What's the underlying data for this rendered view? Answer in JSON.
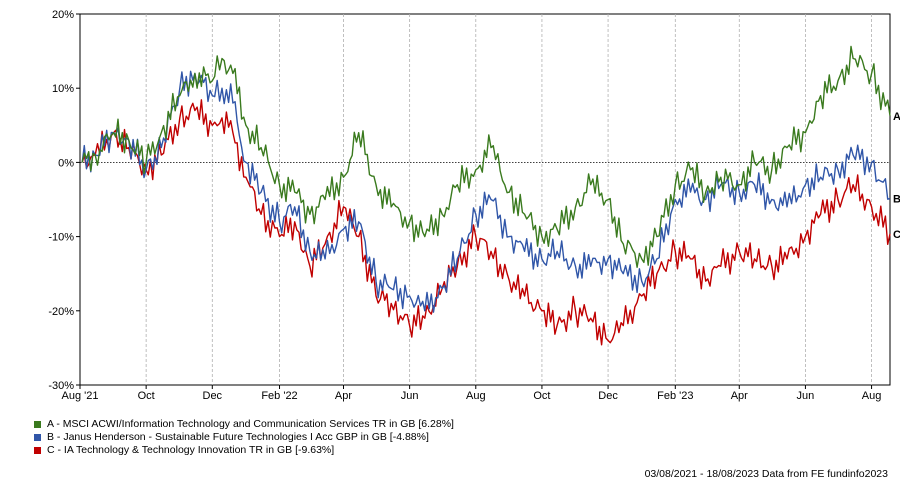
{
  "chart_data": {
    "type": "line",
    "title": "",
    "xlabel": "",
    "ylabel": "",
    "ylim": [
      -30,
      20
    ],
    "y_ticks": [
      "20%",
      "10%",
      "0%",
      "-10%",
      "-20%",
      "-30%"
    ],
    "y_tick_values": [
      20,
      10,
      0,
      -10,
      -20,
      -30
    ],
    "x_tick_labels": [
      "Aug '21",
      "Oct",
      "Dec",
      "Feb '22",
      "Apr",
      "Jun",
      "Aug",
      "Oct",
      "Dec",
      "Feb '23",
      "Apr",
      "Jun",
      "Aug"
    ],
    "x_tick_dates": [
      "2021-08-01",
      "2021-10-01",
      "2021-12-01",
      "2022-02-01",
      "2022-04-01",
      "2022-06-01",
      "2022-08-01",
      "2022-10-01",
      "2022-12-01",
      "2023-02-01",
      "2023-04-01",
      "2023-06-01",
      "2023-08-01"
    ],
    "x_range": [
      "2021-08-01",
      "2023-08-18"
    ],
    "grid": "vertical dashed",
    "zero_line": "dotted",
    "legend_position": "bottom-left",
    "series": [
      {
        "label": "A",
        "name": "A - MSCI ACWI/Information Technology and Communication Services TR in GB [6.28%]",
        "color": "#3a7a1e",
        "x": [
          "2021-08-03",
          "2021-08-15",
          "2021-09-01",
          "2021-09-15",
          "2021-10-01",
          "2021-10-15",
          "2021-11-01",
          "2021-11-15",
          "2021-12-01",
          "2021-12-10",
          "2021-12-20",
          "2022-01-01",
          "2022-01-15",
          "2022-02-01",
          "2022-02-15",
          "2022-03-01",
          "2022-03-15",
          "2022-04-01",
          "2022-04-15",
          "2022-05-01",
          "2022-05-15",
          "2022-06-01",
          "2022-06-15",
          "2022-07-01",
          "2022-07-15",
          "2022-08-01",
          "2022-08-15",
          "2022-09-01",
          "2022-09-15",
          "2022-10-01",
          "2022-10-15",
          "2022-11-01",
          "2022-11-15",
          "2022-12-01",
          "2022-12-15",
          "2023-01-01",
          "2023-01-15",
          "2023-02-01",
          "2023-02-15",
          "2023-03-01",
          "2023-03-15",
          "2023-04-01",
          "2023-04-15",
          "2023-05-01",
          "2023-05-15",
          "2023-06-01",
          "2023-06-15",
          "2023-07-01",
          "2023-07-15",
          "2023-08-01",
          "2023-08-18"
        ],
        "values": [
          0,
          1,
          4,
          3,
          0,
          4,
          9,
          12,
          11,
          14,
          12,
          5,
          2,
          -3,
          -4,
          -7,
          -5,
          -2,
          4,
          -3,
          -6,
          -8,
          -10,
          -7,
          -3,
          -1,
          2,
          -4,
          -7,
          -10,
          -9,
          -6,
          -3,
          -5,
          -11,
          -13,
          -10,
          -3,
          -1,
          -4,
          -2,
          -3,
          0,
          -1,
          2,
          4,
          9,
          11,
          14,
          12,
          6.28
        ]
      },
      {
        "label": "B",
        "name": "B - Janus Henderson - Sustainable Future Technologies I Acc GBP in GB [-4.88%]",
        "color": "#3056a8",
        "x": [
          "2021-08-03",
          "2021-08-15",
          "2021-09-01",
          "2021-09-15",
          "2021-10-01",
          "2021-10-15",
          "2021-11-01",
          "2021-11-15",
          "2021-12-01",
          "2021-12-10",
          "2021-12-20",
          "2022-01-01",
          "2022-01-15",
          "2022-02-01",
          "2022-02-15",
          "2022-03-01",
          "2022-03-15",
          "2022-04-01",
          "2022-04-15",
          "2022-05-01",
          "2022-05-15",
          "2022-06-01",
          "2022-06-15",
          "2022-07-01",
          "2022-07-15",
          "2022-08-01",
          "2022-08-15",
          "2022-09-01",
          "2022-09-15",
          "2022-10-01",
          "2022-10-15",
          "2022-11-01",
          "2022-11-15",
          "2022-12-01",
          "2022-12-15",
          "2023-01-01",
          "2023-01-15",
          "2023-02-01",
          "2023-02-15",
          "2023-03-01",
          "2023-03-15",
          "2023-04-01",
          "2023-04-15",
          "2023-05-01",
          "2023-05-15",
          "2023-06-01",
          "2023-06-15",
          "2023-07-01",
          "2023-07-15",
          "2023-08-01",
          "2023-08-18"
        ],
        "values": [
          0,
          1,
          4,
          3,
          -1,
          2,
          10,
          12,
          9,
          10,
          8,
          0,
          -4,
          -8,
          -6,
          -12,
          -13,
          -9,
          -8,
          -16,
          -17,
          -18,
          -20,
          -17,
          -13,
          -7,
          -5,
          -10,
          -12,
          -13,
          -12,
          -14,
          -14,
          -13,
          -15,
          -16,
          -13,
          -5,
          -4,
          -5,
          -3,
          -4,
          -3,
          -5,
          -6,
          -3,
          -2,
          -1,
          1,
          0,
          -4.88
        ]
      },
      {
        "label": "C",
        "name": "C - IA Technology & Technology Innovation TR in GB [-9.63%]",
        "color": "#c00000",
        "x": [
          "2021-08-03",
          "2021-08-15",
          "2021-09-01",
          "2021-09-15",
          "2021-10-01",
          "2021-10-15",
          "2021-11-01",
          "2021-11-15",
          "2021-12-01",
          "2021-12-10",
          "2021-12-20",
          "2022-01-01",
          "2022-01-15",
          "2022-02-01",
          "2022-02-15",
          "2022-03-01",
          "2022-03-15",
          "2022-04-01",
          "2022-04-15",
          "2022-05-01",
          "2022-05-15",
          "2022-06-01",
          "2022-06-15",
          "2022-07-01",
          "2022-07-15",
          "2022-08-01",
          "2022-08-15",
          "2022-09-01",
          "2022-09-15",
          "2022-10-01",
          "2022-10-15",
          "2022-11-01",
          "2022-11-15",
          "2022-12-01",
          "2022-12-15",
          "2023-01-01",
          "2023-01-15",
          "2023-02-01",
          "2023-02-15",
          "2023-03-01",
          "2023-03-15",
          "2023-04-01",
          "2023-04-15",
          "2023-05-01",
          "2023-05-15",
          "2023-06-01",
          "2023-06-15",
          "2023-07-01",
          "2023-07-15",
          "2023-08-01",
          "2023-08-18"
        ],
        "values": [
          0,
          1,
          4,
          2,
          -1,
          1,
          6,
          7,
          5,
          6,
          4,
          -2,
          -7,
          -10,
          -8,
          -14,
          -11,
          -6,
          -10,
          -18,
          -19,
          -22,
          -21,
          -17,
          -14,
          -10,
          -12,
          -16,
          -18,
          -20,
          -22,
          -20,
          -21,
          -24,
          -22,
          -18,
          -15,
          -12,
          -13,
          -16,
          -14,
          -12,
          -13,
          -14,
          -13,
          -10,
          -7,
          -5,
          -3,
          -6,
          -9.63
        ]
      }
    ]
  },
  "legend": [
    {
      "color": "#3a7a1e",
      "text": "A - MSCI ACWI/Information Technology and Communication Services TR in GB [6.28%]"
    },
    {
      "color": "#3056a8",
      "text": "B - Janus Henderson - Sustainable Future Technologies I Acc GBP in GB [-4.88%]"
    },
    {
      "color": "#c00000",
      "text": "C - IA Technology & Technology Innovation TR in GB [-9.63%]"
    }
  ],
  "footer": "03/08/2021 - 18/08/2023 Data from FE fundinfo2023"
}
